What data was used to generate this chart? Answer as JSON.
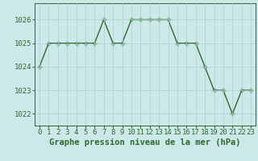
{
  "x": [
    0,
    1,
    2,
    3,
    4,
    5,
    6,
    7,
    8,
    9,
    10,
    11,
    12,
    13,
    14,
    15,
    16,
    17,
    18,
    19,
    20,
    21,
    22,
    23
  ],
  "y": [
    1024,
    1025,
    1025,
    1025,
    1025,
    1025,
    1025,
    1026,
    1025,
    1025,
    1026,
    1026,
    1026,
    1026,
    1026,
    1025,
    1025,
    1025,
    1024,
    1023,
    1023,
    1022,
    1023,
    1023
  ],
  "line_color": "#2d6a2d",
  "marker_color": "#2d6a2d",
  "bg_color": "#cce8e8",
  "grid_color": "#aad0d0",
  "title": "Graphe pression niveau de la mer (hPa)",
  "ylim_min": 1021.5,
  "ylim_max": 1026.7,
  "yticks": [
    1022,
    1023,
    1024,
    1025,
    1026
  ],
  "xticks": [
    0,
    1,
    2,
    3,
    4,
    5,
    6,
    7,
    8,
    9,
    10,
    11,
    12,
    13,
    14,
    15,
    16,
    17,
    18,
    19,
    20,
    21,
    22,
    23
  ],
  "title_fontsize": 7.5,
  "tick_fontsize": 6.5,
  "line_width": 1.0,
  "marker_size": 4
}
